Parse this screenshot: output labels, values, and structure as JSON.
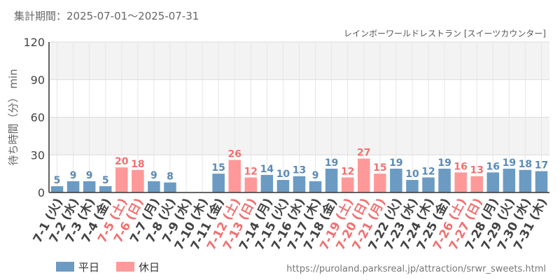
{
  "period_label": "集計期間：2025-07-01～2025-07-31",
  "source_url": "https://puroland.parksreal.jp/attraction/srwr_sweets.html",
  "colors": {
    "weekday": "#6b9bc3",
    "holiday": "#ff9999",
    "weekday_label": "#5b8ab5",
    "holiday_label": "#f07070"
  },
  "chart_data": {
    "type": "bar",
    "title": "",
    "subtitle": "レインボーワールドレストラン [スイーツカウンター]",
    "xlabel": "",
    "ylabel": "待ち時間（分） min",
    "ylim": [
      0,
      120
    ],
    "yticks": [
      0,
      30,
      60,
      90,
      120
    ],
    "grid": true,
    "legend_placement": "bottom-left",
    "legend": [
      {
        "key": "weekday",
        "label": "平日"
      },
      {
        "key": "holiday",
        "label": "休日"
      }
    ],
    "categories": [
      "7-1 (火)",
      "7-2 (水)",
      "7-3 (木)",
      "7-4 (金)",
      "7-5 (土)",
      "7-6 (日)",
      "7-7 (月)",
      "7-8 (火)",
      "7-9 (水)",
      "7-10 (木)",
      "7-11 (金)",
      "7-12 (土)",
      "7-13 (日)",
      "7-14 (月)",
      "7-15 (火)",
      "7-16 (水)",
      "7-17 (木)",
      "7-18 (金)",
      "7-19 (土)",
      "7-20 (日)",
      "7-21 (月)",
      "7-22 (火)",
      "7-23 (水)",
      "7-24 (木)",
      "7-25 (金)",
      "7-26 (土)",
      "7-27 (日)",
      "7-28 (月)",
      "7-29 (火)",
      "7-30 (水)",
      "7-31 (木)"
    ],
    "values": [
      5,
      9,
      9,
      5,
      20,
      18,
      9,
      8,
      null,
      null,
      15,
      26,
      12,
      14,
      10,
      13,
      9,
      19,
      12,
      27,
      15,
      19,
      10,
      12,
      19,
      16,
      13,
      16,
      19,
      18,
      17
    ],
    "day_type": [
      "weekday",
      "weekday",
      "weekday",
      "weekday",
      "holiday",
      "holiday",
      "weekday",
      "weekday",
      "weekday",
      "weekday",
      "weekday",
      "holiday",
      "holiday",
      "weekday",
      "weekday",
      "weekday",
      "weekday",
      "weekday",
      "holiday",
      "holiday",
      "holiday",
      "weekday",
      "weekday",
      "weekday",
      "weekday",
      "holiday",
      "holiday",
      "weekday",
      "weekday",
      "weekday",
      "weekday"
    ]
  }
}
